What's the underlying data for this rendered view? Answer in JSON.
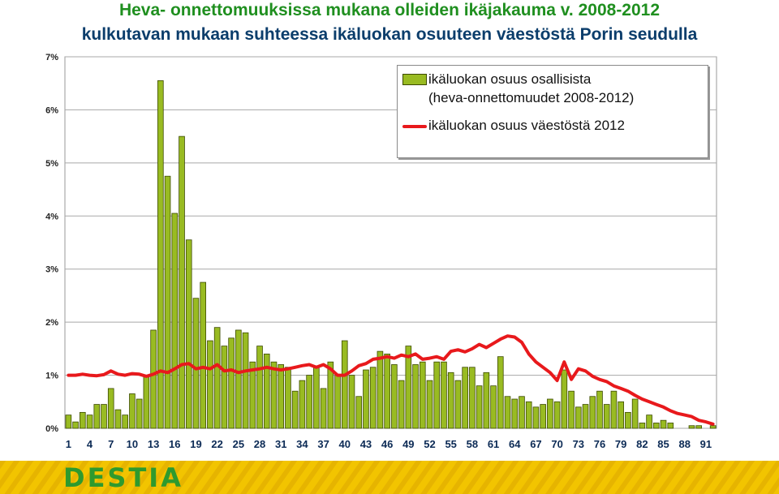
{
  "title_line1": "Heva- onnettomuuksissa mukana olleiden ikäjakauma v. 2008-2012",
  "title_line2": "kulkutavan mukaan suhteessa ikäluokan osuuteen väestöstä Porin seudulla",
  "footer": {
    "brand": "DESTIA",
    "band_color": "#f2c400",
    "brand_color": "#2e9a2e"
  },
  "chart_data": {
    "type": "bar",
    "x": [
      1,
      2,
      3,
      4,
      5,
      6,
      7,
      8,
      9,
      10,
      11,
      12,
      13,
      14,
      15,
      16,
      17,
      18,
      19,
      20,
      21,
      22,
      23,
      24,
      25,
      26,
      27,
      28,
      29,
      30,
      31,
      32,
      33,
      34,
      35,
      36,
      37,
      38,
      39,
      40,
      41,
      42,
      43,
      44,
      45,
      46,
      47,
      48,
      49,
      50,
      51,
      52,
      53,
      54,
      55,
      56,
      57,
      58,
      59,
      60,
      61,
      62,
      63,
      64,
      65,
      66,
      67,
      68,
      69,
      70,
      71,
      72,
      73,
      74,
      75,
      76,
      77,
      78,
      79,
      80,
      81,
      82,
      83,
      84,
      85,
      86,
      87,
      88,
      89,
      90,
      91,
      92
    ],
    "xticks": [
      1,
      4,
      7,
      10,
      13,
      16,
      19,
      22,
      25,
      28,
      31,
      34,
      37,
      40,
      43,
      46,
      49,
      52,
      55,
      58,
      61,
      64,
      67,
      70,
      73,
      76,
      79,
      82,
      85,
      88,
      91
    ],
    "yticks": [
      "0%",
      "1%",
      "2%",
      "3%",
      "4%",
      "5%",
      "6%",
      "7%"
    ],
    "ylim": [
      0,
      7
    ],
    "bar_color": "#99bb22",
    "line_color": "#e8191c",
    "series": [
      {
        "name": "ikäluokan osuus osallisista",
        "name_line2": "(heva-onnettomuudet 2008-2012)",
        "type": "bar",
        "values": [
          0.25,
          0.12,
          0.3,
          0.25,
          0.45,
          0.45,
          0.75,
          0.35,
          0.25,
          0.65,
          0.55,
          1.0,
          1.85,
          6.55,
          4.75,
          4.05,
          5.5,
          3.55,
          2.45,
          2.75,
          1.65,
          1.9,
          1.55,
          1.7,
          1.85,
          1.8,
          1.25,
          1.55,
          1.4,
          1.25,
          1.2,
          1.15,
          0.7,
          0.9,
          1.0,
          1.15,
          0.75,
          1.25,
          1.0,
          1.65,
          1.0,
          0.6,
          1.1,
          1.15,
          1.45,
          1.4,
          1.2,
          0.9,
          1.55,
          1.2,
          1.25,
          0.9,
          1.25,
          1.25,
          1.05,
          0.9,
          1.15,
          1.15,
          0.8,
          1.05,
          0.8,
          1.35,
          0.6,
          0.55,
          0.6,
          0.5,
          0.4,
          0.45,
          0.55,
          0.5,
          1.1,
          0.7,
          0.4,
          0.45,
          0.6,
          0.7,
          0.45,
          0.7,
          0.5,
          0.3,
          0.55,
          0.1,
          0.25,
          0.1,
          0.15,
          0.1,
          0,
          0,
          0.05,
          0.05,
          0,
          0.05
        ]
      },
      {
        "name": "ikäluokan osuus väestöstä 2012",
        "type": "line",
        "values": [
          1.0,
          1.0,
          1.02,
          1.0,
          0.99,
          1.01,
          1.08,
          1.02,
          1.0,
          1.03,
          1.02,
          0.98,
          1.02,
          1.08,
          1.05,
          1.12,
          1.2,
          1.22,
          1.12,
          1.15,
          1.12,
          1.2,
          1.08,
          1.1,
          1.05,
          1.08,
          1.1,
          1.12,
          1.15,
          1.12,
          1.1,
          1.12,
          1.15,
          1.18,
          1.2,
          1.15,
          1.2,
          1.12,
          1.0,
          1.0,
          1.08,
          1.18,
          1.22,
          1.3,
          1.32,
          1.35,
          1.32,
          1.38,
          1.35,
          1.4,
          1.3,
          1.32,
          1.35,
          1.3,
          1.45,
          1.48,
          1.44,
          1.5,
          1.58,
          1.52,
          1.6,
          1.68,
          1.74,
          1.72,
          1.62,
          1.4,
          1.25,
          1.15,
          1.05,
          0.9,
          1.25,
          0.92,
          1.12,
          1.08,
          0.98,
          0.92,
          0.88,
          0.8,
          0.75,
          0.7,
          0.62,
          0.55,
          0.5,
          0.45,
          0.4,
          0.33,
          0.28,
          0.25,
          0.22,
          0.15,
          0.12,
          0.08
        ]
      }
    ],
    "legend_position": "top-right",
    "grid": true
  }
}
